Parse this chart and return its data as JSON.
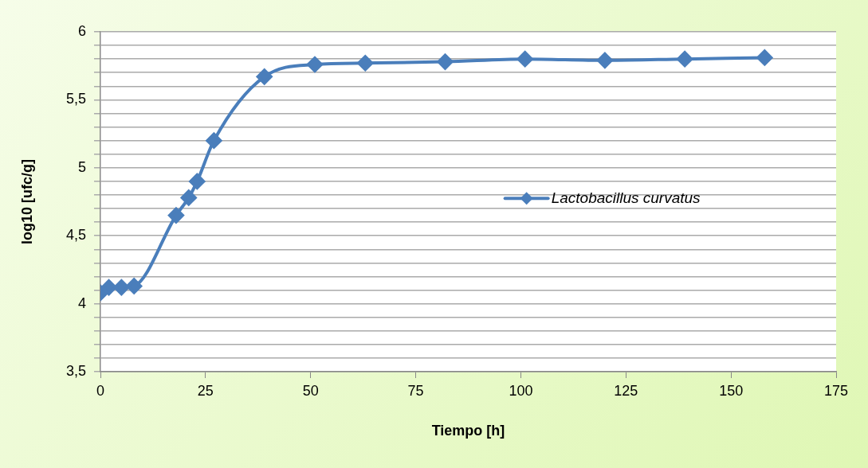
{
  "chart_data": {
    "type": "line",
    "xlabel": "Tiempo [h]",
    "ylabel": "log10 [ufc/g]",
    "xlim": [
      0,
      175
    ],
    "xticks": [
      0,
      25,
      50,
      75,
      100,
      125,
      150,
      175
    ],
    "ylim": [
      3.5,
      6
    ],
    "yticks": [
      {
        "value": 3.5,
        "label": "3,5"
      },
      {
        "value": 3.6,
        "label": null
      },
      {
        "value": 3.7,
        "label": null
      },
      {
        "value": 3.8,
        "label": null
      },
      {
        "value": 3.9,
        "label": null
      },
      4,
      {
        "value": 4.1,
        "label": null
      },
      {
        "value": 4.2,
        "label": null
      },
      {
        "value": 4.3,
        "label": null
      },
      {
        "value": 4.4,
        "label": null
      },
      {
        "value": 4.5,
        "label": "4,5"
      },
      {
        "value": 4.6,
        "label": null
      },
      {
        "value": 4.7,
        "label": null
      },
      {
        "value": 4.8,
        "label": null
      },
      {
        "value": 4.9,
        "label": null
      },
      5,
      {
        "value": 5.1,
        "label": null
      },
      {
        "value": 5.2,
        "label": null
      },
      {
        "value": 5.3,
        "label": null
      },
      {
        "value": 5.4,
        "label": null
      },
      {
        "value": 5.5,
        "label": "5,5"
      },
      {
        "value": 5.6,
        "label": null
      },
      {
        "value": 5.7,
        "label": null
      },
      {
        "value": 5.8,
        "label": null
      },
      {
        "value": 5.9,
        "label": null
      },
      6
    ],
    "x": [
      0,
      2,
      5,
      8,
      18,
      21,
      23,
      27,
      39,
      51,
      63,
      82,
      101,
      120,
      139,
      158
    ],
    "series": [
      {
        "name": "Lactobacillus curvatus",
        "color": "#4a7ebb",
        "values": [
          4.08,
          4.12,
          4.12,
          4.13,
          4.65,
          4.78,
          4.9,
          5.2,
          5.67,
          5.76,
          5.77,
          5.78,
          5.8,
          5.79,
          5.8,
          5.81
        ]
      }
    ],
    "grid": "y",
    "legend": "right",
    "marker": "diamond",
    "line_style": "solid"
  }
}
